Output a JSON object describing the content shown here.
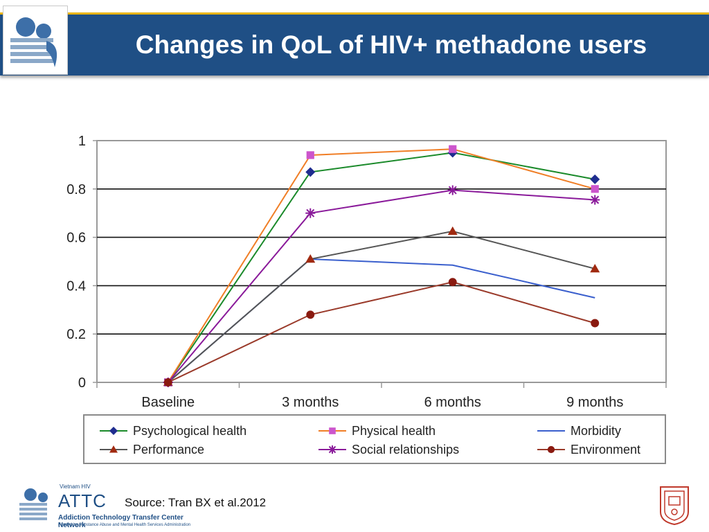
{
  "slide": {
    "title": "Changes in QoL of HIV+ methadone users",
    "source": "Source: Tran BX et al.2012"
  },
  "footer_logo": {
    "tagline": "Vietnam HIV",
    "name": "ATTC",
    "network": "Addiction Technology Transfer Center Network",
    "funding": "Funded by Substance Abuse and Mental Health Services Administration"
  },
  "colors": {
    "header": "#1f4f85",
    "accent": "#e8b400"
  },
  "chart_data": {
    "type": "line",
    "title": "",
    "xlabel": "",
    "ylabel": "",
    "ylim": [
      0,
      1
    ],
    "y_ticks": [
      "0",
      "0.2",
      "0.4",
      "0.6",
      "0.8",
      "1"
    ],
    "categories": [
      "Baseline",
      "3 months",
      "6 months",
      "9 months"
    ],
    "grid": true,
    "legend_position": "bottom",
    "series": [
      {
        "name": "Psychological health",
        "color": "#1a8a2a",
        "marker": "diamond",
        "marker_color": "#1f2d8f",
        "values": [
          0,
          0.87,
          0.95,
          0.84
        ]
      },
      {
        "name": "Physical health",
        "color": "#f07e26",
        "marker": "square",
        "marker_color": "#cc55cc",
        "values": [
          0,
          0.94,
          0.965,
          0.8
        ]
      },
      {
        "name": "Morbidity",
        "color": "#3a5fcd",
        "marker": "none",
        "marker_color": "#3a5fcd",
        "values": [
          0,
          0.51,
          0.485,
          0.35
        ]
      },
      {
        "name": "Performance",
        "color": "#555555",
        "marker": "triangle",
        "marker_color": "#a02a10",
        "values": [
          0,
          0.51,
          0.625,
          0.47
        ]
      },
      {
        "name": "Social relationships",
        "color": "#8a1a9a",
        "marker": "star",
        "marker_color": "#8a1a9a",
        "values": [
          0,
          0.7,
          0.795,
          0.755
        ]
      },
      {
        "name": "Environment",
        "color": "#9a3a2a",
        "marker": "circle",
        "marker_color": "#8a1a10",
        "values": [
          0,
          0.28,
          0.415,
          0.245
        ]
      }
    ]
  }
}
